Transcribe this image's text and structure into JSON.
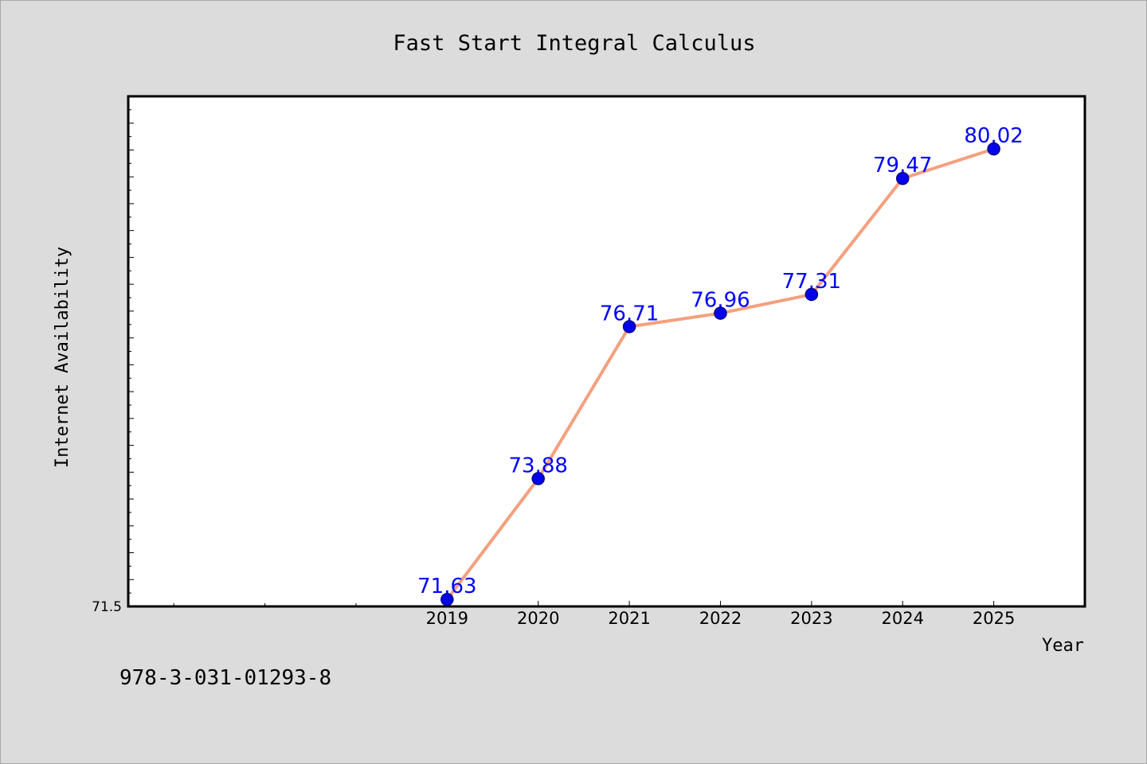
{
  "chart_data": {
    "type": "line",
    "title": "Fast Start Integral Calculus",
    "xlabel": "Year",
    "ylabel": "Internet Availability",
    "categories": [
      "2019",
      "2020",
      "2021",
      "2022",
      "2023",
      "2024",
      "2025"
    ],
    "values": [
      71.63,
      73.88,
      76.71,
      76.96,
      77.31,
      79.47,
      80.02
    ],
    "data_labels": [
      "71.63",
      "73.88",
      "76.71",
      "76.96",
      "77.31",
      "79.47",
      "80.02"
    ],
    "y_tick_labels": [
      "71.5"
    ],
    "ylim": [
      71.5,
      81.0
    ],
    "x_range": [
      2015.5,
      2026.0
    ],
    "grid": false,
    "legend": "none",
    "colors": {
      "line": "#f4a07e",
      "marker_fill": "#0000ee",
      "marker_edge": "#00008b",
      "data_label": "#0000ff",
      "plot_background": "#ffffff",
      "page_background": "#dcdcdc"
    }
  },
  "footer": {
    "isbn": "978-3-031-01293-8"
  }
}
